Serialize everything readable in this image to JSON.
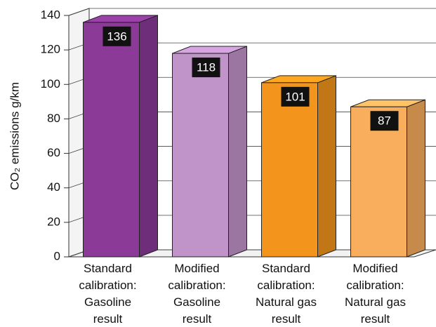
{
  "chart_data": {
    "type": "bar3d",
    "y_label": "CO₂ emissions g/km",
    "categories": [
      [
        "Standard",
        "calibration:",
        "Gasoline",
        "result"
      ],
      [
        "Modified",
        "calibration:",
        "Gasoline",
        "result"
      ],
      [
        "Standard",
        "calibration:",
        "Natural gas",
        "result"
      ],
      [
        "Modified",
        "calibration:",
        "Natural gas",
        "result"
      ]
    ],
    "values": [
      136,
      118,
      101,
      87
    ],
    "colors": [
      "#8b3a98",
      "#c093c9",
      "#f3951c",
      "#f8ae5c"
    ],
    "ylim": [
      0,
      140
    ],
    "yticks": [
      0,
      20,
      40,
      60,
      80,
      100,
      120,
      140
    ],
    "grid": true
  }
}
